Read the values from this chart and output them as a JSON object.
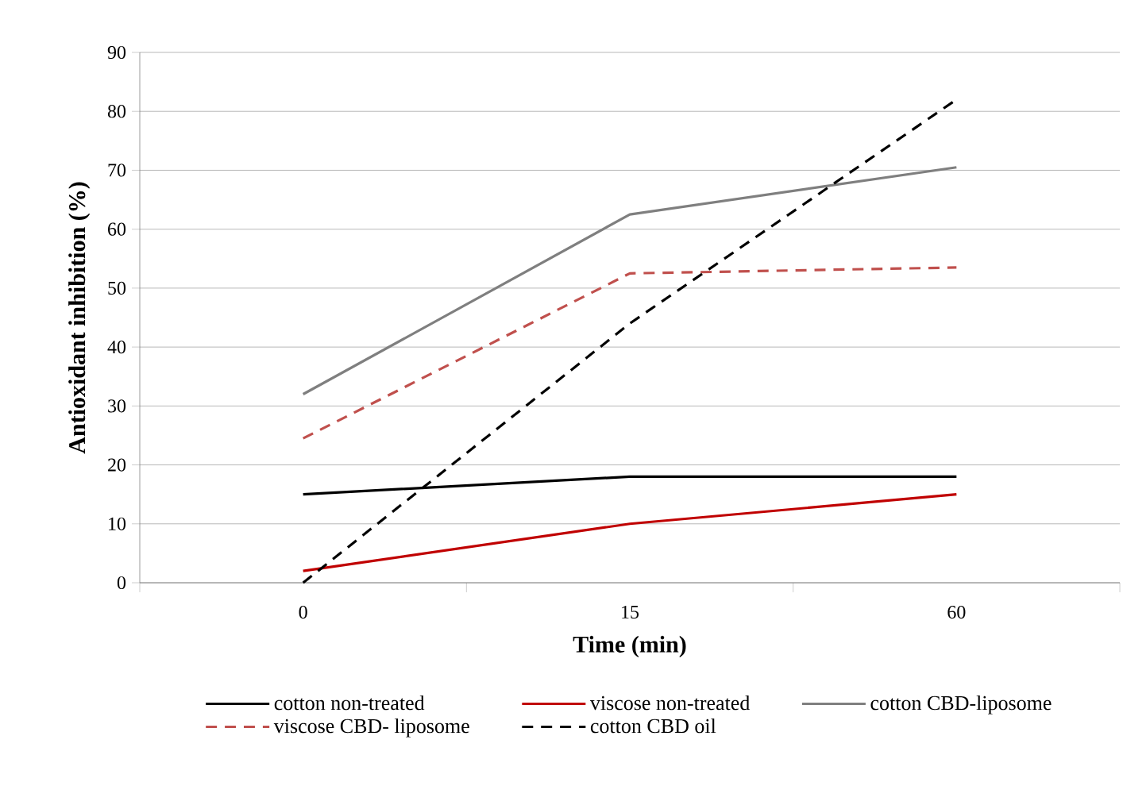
{
  "chart_data": {
    "type": "line",
    "xlabel": "Time (min)",
    "ylabel": "Antioxidant  inhibition (%)",
    "categories": [
      "0",
      "15",
      "60"
    ],
    "series": [
      {
        "name": "cotton non-treated",
        "color": "#000000",
        "line_style": "solid",
        "values": [
          15,
          18,
          18
        ]
      },
      {
        "name": "viscose non-treated",
        "color": "#c00000",
        "line_style": "solid",
        "values": [
          2,
          10,
          15
        ]
      },
      {
        "name": "cotton CBD-liposome",
        "color": "#7f7f7f",
        "line_style": "solid",
        "values": [
          32,
          62.5,
          70.5
        ]
      },
      {
        "name": "viscose CBD- liposome",
        "color": "#c0504d",
        "line_style": "dashed",
        "values": [
          24.5,
          52.5,
          53.5
        ]
      },
      {
        "name": "cotton CBD oil",
        "color": "#000000",
        "line_style": "dashed",
        "values": [
          0,
          44,
          82
        ]
      }
    ],
    "ylim": [
      0,
      90
    ],
    "yticks": [
      0,
      10,
      20,
      30,
      40,
      50,
      60,
      70,
      80,
      90
    ],
    "grid": "y",
    "legend": "bottom",
    "marker": "none"
  }
}
